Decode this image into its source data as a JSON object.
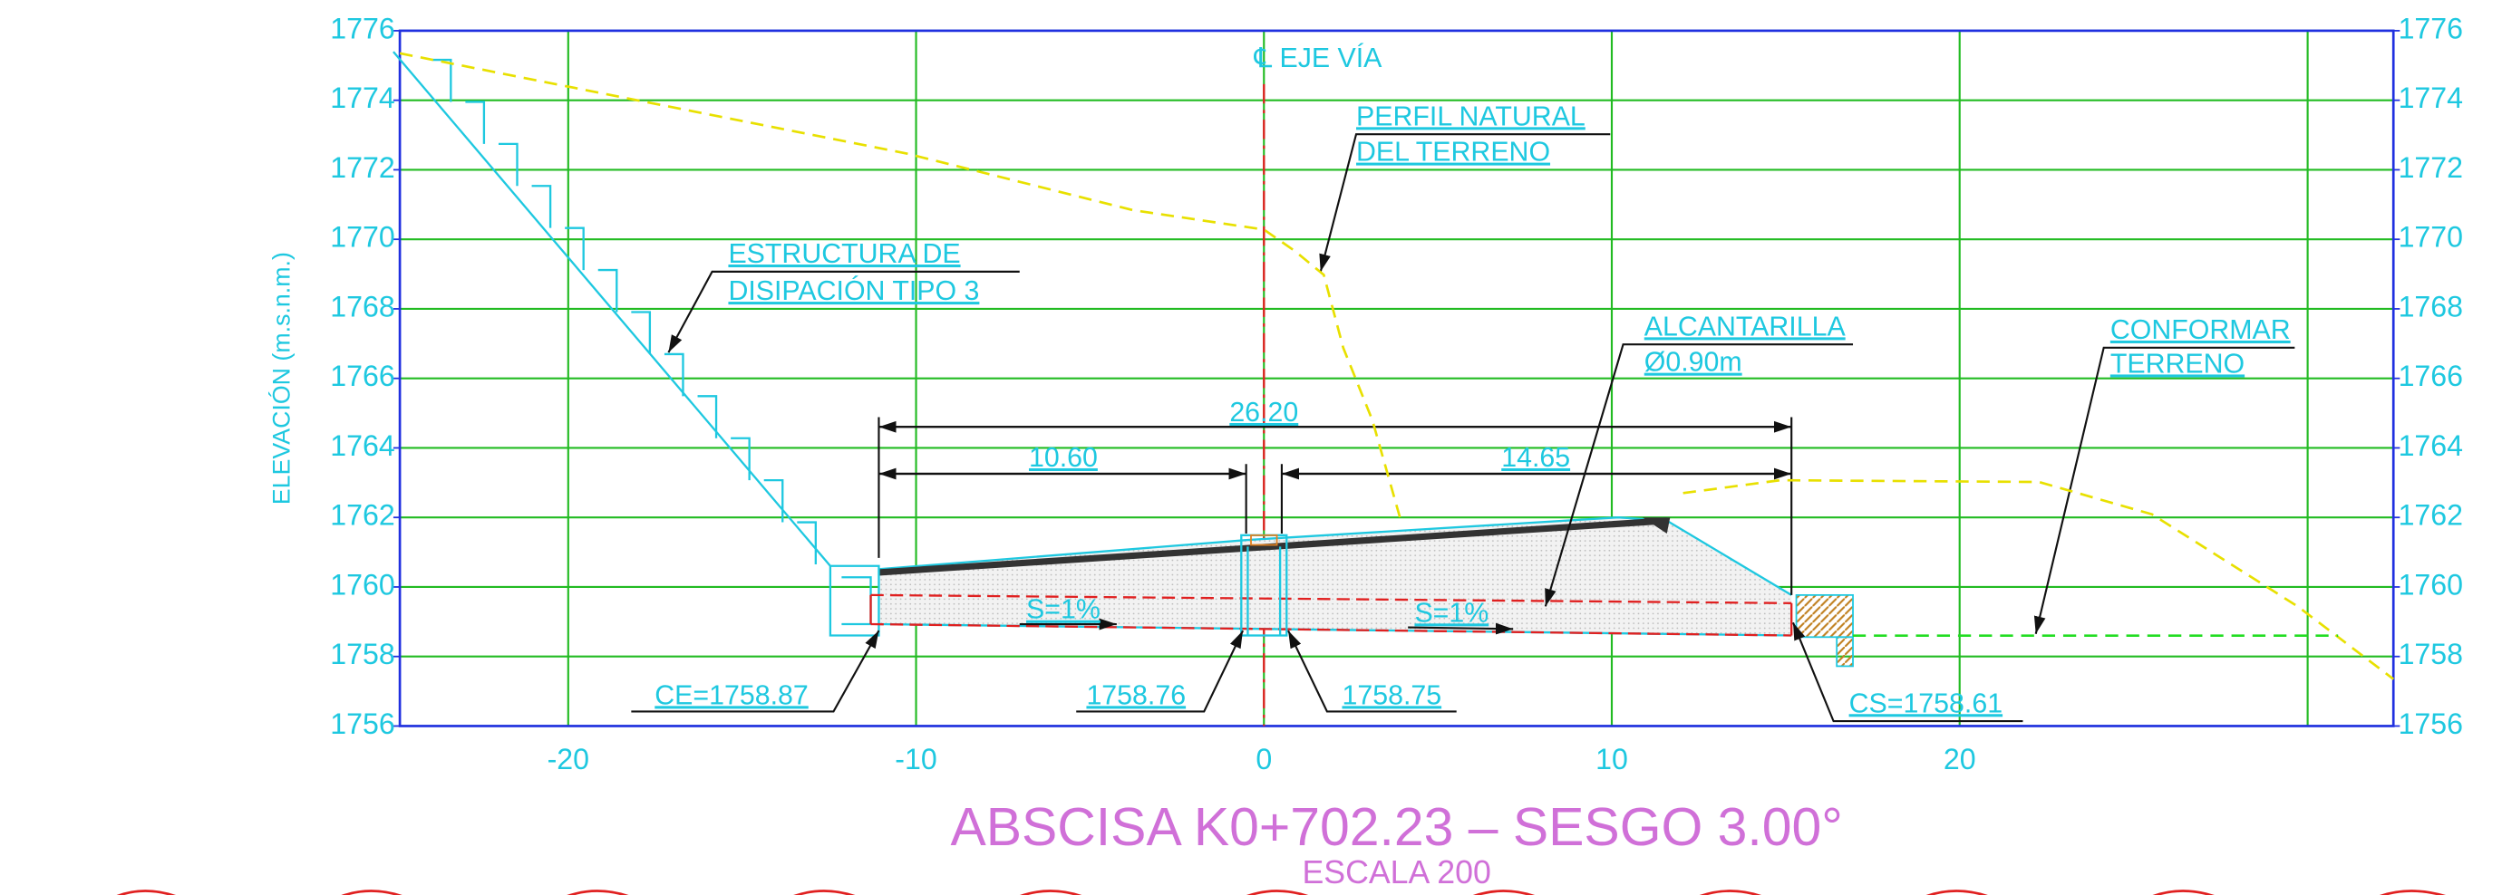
{
  "chart_data": {
    "type": "line",
    "title": "ABSCISA K0+702.23 – SESGO 3.00°",
    "subtitle": "ESCALA 200",
    "ylabel": "ELEVACIÓN (m.s.n.m.)",
    "xlim": [
      -24.84,
      32.47
    ],
    "ylim": [
      1756,
      1776
    ],
    "xticks": [
      -20,
      -10,
      0,
      10,
      20
    ],
    "yticks": [
      1756,
      1758,
      1760,
      1762,
      1764,
      1766,
      1768,
      1770,
      1772,
      1774,
      1776
    ],
    "grid": true,
    "series": [
      {
        "color": "#e8e000",
        "dash": true,
        "x": [
          -24.84,
          -10.28,
          -3.77,
          0,
          0.88,
          1.72,
          2.28,
          3.12,
          3.91,
          null,
          12.05,
          14.84,
          22.28,
          25.53,
          29.72,
          32.47
        ],
        "values": [
          1775.35,
          1772.47,
          1770.84,
          1770.28,
          1769.67,
          1768.98,
          1766.88,
          1764.79,
          1762.0,
          null,
          1762.7,
          1763.07,
          1763.02,
          1762.09,
          1759.44,
          1757.35
        ]
      },
      {
        "color": "#22dd22",
        "dash": true,
        "x": [
          16.93,
          30.88
        ],
        "values": [
          1758.6,
          1758.6
        ]
      }
    ],
    "annotations": [
      "℄ EJE VÍA",
      "PERFIL NATURAL",
      "DEL TERRENO",
      "ESTRUCTURA DE",
      "DISIPACIÓN TIPO 3",
      "ALCANTARILLA",
      "Ø0.90m",
      "CONFORMAR",
      "TERRENO",
      "26.20",
      "10.60",
      "14.65",
      "S=1%",
      "S=1%",
      "CE=1758.87",
      "1758.76",
      "1758.75",
      "CS=1758.61"
    ]
  }
}
